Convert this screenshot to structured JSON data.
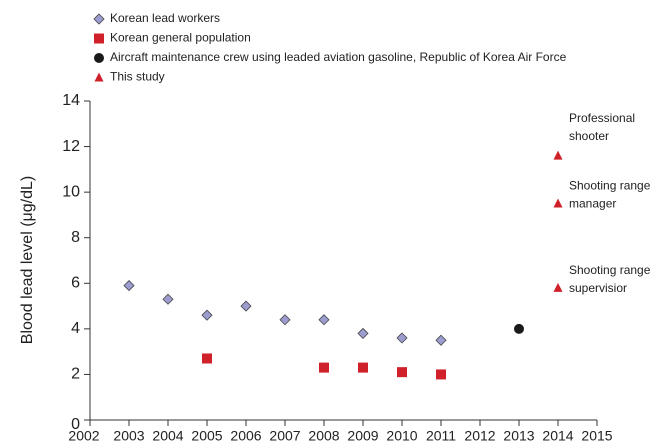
{
  "chart_data": {
    "type": "scatter",
    "ylabel": "Blood lead level (μg/dL)",
    "xlim": [
      2002,
      2015
    ],
    "xticks": [
      2002,
      2003,
      2004,
      2005,
      2006,
      2007,
      2008,
      2009,
      2010,
      2011,
      2012,
      2013,
      2014,
      2015
    ],
    "ylim": [
      0,
      14
    ],
    "yticks": [
      0,
      2,
      4,
      6,
      8,
      10,
      12,
      14
    ],
    "legend": "top-left",
    "series": [
      {
        "name": "Korean lead workers",
        "color": "#9b9dd0",
        "marker": "diamond",
        "x": [
          2003,
          2004,
          2005,
          2006,
          2007,
          2008,
          2009,
          2010,
          2011
        ],
        "values": [
          5.9,
          5.3,
          4.6,
          5.0,
          4.4,
          4.4,
          3.8,
          3.6,
          3.5
        ]
      },
      {
        "name": "Korean general population",
        "color": "#d0202a",
        "marker": "square",
        "x": [
          2005,
          2008,
          2009,
          2010,
          2011
        ],
        "values": [
          2.7,
          2.3,
          2.3,
          2.1,
          2.0
        ]
      },
      {
        "name": "Aircraft maintenance crew using leaded aviation gasoline, Republic of Korea Air Force",
        "color": "#1a1a1a",
        "marker": "circle",
        "x": [
          2013
        ],
        "values": [
          4.0
        ]
      },
      {
        "name": "This study",
        "color": "#d0202a",
        "marker": "triangle",
        "x": [
          2014,
          2014,
          2014
        ],
        "values": [
          11.6,
          9.5,
          5.8
        ],
        "annotations": [
          [
            "Professional",
            "shooter"
          ],
          [
            "Shooting range",
            "manager"
          ],
          [
            "Shooting range",
            "supervisior"
          ]
        ]
      }
    ]
  }
}
